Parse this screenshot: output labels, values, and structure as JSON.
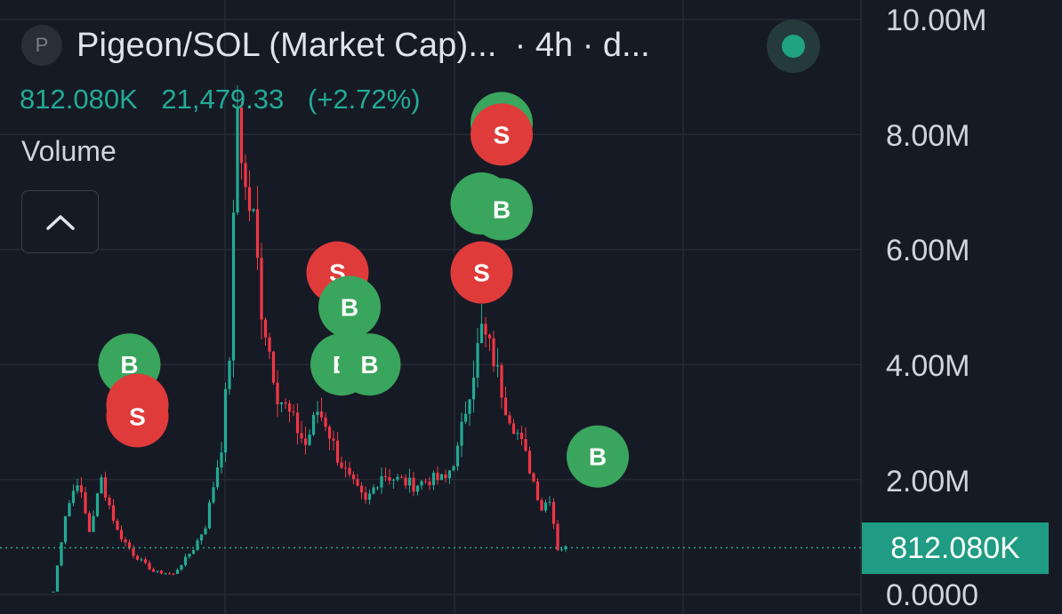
{
  "header": {
    "symbol_badge": "P",
    "title": "Pigeon/SOL (Market Cap)...",
    "meta": "· 4h · d...",
    "live_icon": "live-dot-icon"
  },
  "price_line": {
    "last": "812.080K",
    "change": "21,479.33",
    "change_pct": "(+2.72%)",
    "color": "#22ab94"
  },
  "volume_label": "Volume",
  "collapse_icon": "chevron-up-icon",
  "y_axis": {
    "ticks": [
      "10.00M",
      "8.00M",
      "6.00M",
      "4.00M",
      "2.00M",
      "0.0000"
    ],
    "current_price_label": "812.080K"
  },
  "colors": {
    "background": "#161a25",
    "up": "#22ab94",
    "down": "#f23645",
    "buy_marker": "#3aa55d",
    "sell_marker": "#e03b3b"
  },
  "chart_data": {
    "type": "candlestick",
    "ylim": [
      0,
      10000000
    ],
    "current_value": 812080,
    "grid": true,
    "shape": [
      [
        0,
        0.05
      ],
      [
        3,
        1.4
      ],
      [
        6,
        2.0
      ],
      [
        9,
        1.1
      ],
      [
        12,
        2.0
      ],
      [
        16,
        1.1
      ],
      [
        20,
        0.7
      ],
      [
        25,
        0.4
      ],
      [
        30,
        0.35
      ],
      [
        35,
        0.8
      ],
      [
        38,
        1.2
      ],
      [
        42,
        2.6
      ],
      [
        44,
        4.2
      ],
      [
        46,
        8.5
      ],
      [
        48,
        7.0
      ],
      [
        50,
        6.5
      ],
      [
        52,
        5.0
      ],
      [
        56,
        3.5
      ],
      [
        60,
        3.0
      ],
      [
        63,
        2.6
      ],
      [
        66,
        3.2
      ],
      [
        68,
        3.0
      ],
      [
        71,
        2.4
      ],
      [
        74,
        2.0
      ],
      [
        78,
        1.6
      ],
      [
        82,
        2.1
      ],
      [
        86,
        2.0
      ],
      [
        90,
        1.9
      ],
      [
        94,
        2.0
      ],
      [
        98,
        2.0
      ],
      [
        101,
        2.5
      ],
      [
        104,
        3.6
      ],
      [
        107,
        4.6
      ],
      [
        110,
        4.1
      ],
      [
        113,
        3.3
      ],
      [
        116,
        2.8
      ],
      [
        119,
        2.2
      ],
      [
        122,
        1.5
      ],
      [
        124,
        1.7
      ],
      [
        126,
        0.8
      ],
      [
        128,
        0.81
      ]
    ],
    "markers": [
      {
        "type": "B",
        "value": 4.0,
        "candle": 9
      },
      {
        "type": "S",
        "value": 3.3,
        "candle": 11
      },
      {
        "type": "S",
        "value": 3.1,
        "candle": 11
      },
      {
        "type": "S",
        "value": 5.6,
        "candle": 61
      },
      {
        "type": "B",
        "value": 5.0,
        "candle": 64
      },
      {
        "type": "B",
        "value": 4.0,
        "candle": 62
      },
      {
        "type": "B",
        "value": 4.0,
        "candle": 69
      },
      {
        "type": "B",
        "value": 8.2,
        "candle": 102
      },
      {
        "type": "S",
        "value": 8.0,
        "candle": 102
      },
      {
        "type": "B",
        "value": 6.8,
        "candle": 97
      },
      {
        "type": "B",
        "value": 6.7,
        "candle": 102
      },
      {
        "type": "S",
        "value": 5.6,
        "candle": 97
      },
      {
        "type": "B",
        "value": 2.4,
        "candle": 126
      }
    ]
  }
}
